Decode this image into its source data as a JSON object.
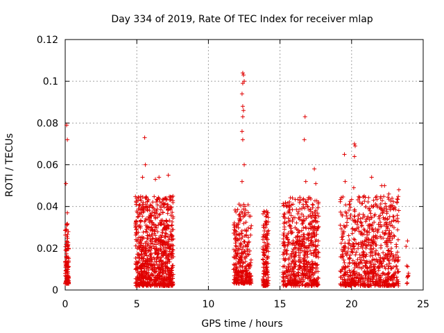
{
  "chart_data": {
    "type": "scatter",
    "title": "Day 334 of 2019, Rate Of TEC Index for receiver mlap",
    "xlabel": "GPS time / hours",
    "ylabel": "ROTI / TECUs",
    "xlim": [
      0,
      25
    ],
    "ylim": [
      0,
      0.12
    ],
    "xticks": [
      0,
      5,
      10,
      15,
      20,
      25
    ],
    "xtick_labels": [
      "0",
      "5",
      "10",
      "15",
      "20",
      "25"
    ],
    "yticks": [
      0,
      0.02,
      0.04,
      0.06,
      0.08,
      0.1,
      0.12
    ],
    "ytick_labels": [
      "0",
      "0.02",
      "0.04",
      "0.06",
      "0.08",
      "0.1",
      "0.12"
    ],
    "grid": true,
    "marker": "+",
    "color": "#e00000",
    "clusters": [
      {
        "x_range": [
          0.0,
          0.25
        ],
        "y_range": [
          0.003,
          0.032
        ],
        "count": 110
      },
      {
        "x_range": [
          4.9,
          7.55
        ],
        "y_range": [
          0.002,
          0.045
        ],
        "count": 900
      },
      {
        "x_range": [
          11.75,
          13.0
        ],
        "y_range": [
          0.003,
          0.042
        ],
        "count": 300
      },
      {
        "x_range": [
          13.8,
          14.2
        ],
        "y_range": [
          0.002,
          0.038
        ],
        "count": 140
      },
      {
        "x_range": [
          15.2,
          17.7
        ],
        "y_range": [
          0.002,
          0.045
        ],
        "count": 600
      },
      {
        "x_range": [
          19.2,
          23.3
        ],
        "y_range": [
          0.002,
          0.045
        ],
        "count": 800
      },
      {
        "x_range": [
          23.8,
          24.0
        ],
        "y_range": [
          0.003,
          0.024
        ],
        "count": 12
      }
    ],
    "outliers": [
      [
        0.1,
        0.079
      ],
      [
        0.15,
        0.072
      ],
      [
        0.05,
        0.051
      ],
      [
        0.15,
        0.037
      ],
      [
        5.55,
        0.073
      ],
      [
        5.6,
        0.06
      ],
      [
        5.4,
        0.054
      ],
      [
        6.3,
        0.053
      ],
      [
        6.55,
        0.054
      ],
      [
        7.2,
        0.055
      ],
      [
        12.4,
        0.104
      ],
      [
        12.45,
        0.103
      ],
      [
        12.5,
        0.1
      ],
      [
        12.4,
        0.099
      ],
      [
        12.35,
        0.094
      ],
      [
        12.4,
        0.088
      ],
      [
        12.45,
        0.086
      ],
      [
        12.4,
        0.083
      ],
      [
        12.35,
        0.076
      ],
      [
        12.4,
        0.072
      ],
      [
        12.5,
        0.06
      ],
      [
        12.35,
        0.052
      ],
      [
        16.75,
        0.083
      ],
      [
        16.7,
        0.072
      ],
      [
        16.8,
        0.052
      ],
      [
        17.4,
        0.058
      ],
      [
        17.5,
        0.051
      ],
      [
        19.5,
        0.065
      ],
      [
        19.55,
        0.052
      ],
      [
        20.2,
        0.07
      ],
      [
        20.25,
        0.069
      ],
      [
        20.2,
        0.064
      ],
      [
        20.15,
        0.049
      ],
      [
        21.4,
        0.054
      ],
      [
        22.1,
        0.05
      ],
      [
        22.3,
        0.05
      ],
      [
        22.6,
        0.046
      ],
      [
        23.3,
        0.048
      ]
    ]
  }
}
